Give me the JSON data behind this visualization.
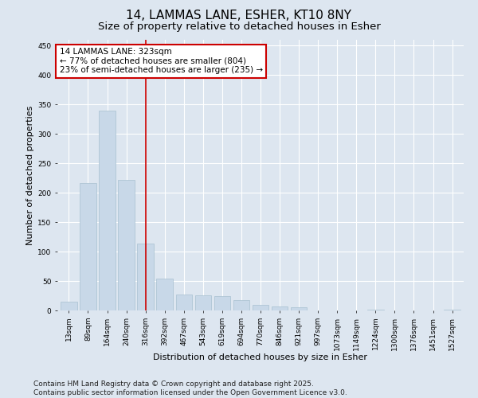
{
  "title_line1": "14, LAMMAS LANE, ESHER, KT10 8NY",
  "title_line2": "Size of property relative to detached houses in Esher",
  "xlabel": "Distribution of detached houses by size in Esher",
  "ylabel": "Number of detached properties",
  "categories": [
    "13sqm",
    "89sqm",
    "164sqm",
    "240sqm",
    "316sqm",
    "392sqm",
    "467sqm",
    "543sqm",
    "619sqm",
    "694sqm",
    "770sqm",
    "846sqm",
    "921sqm",
    "997sqm",
    "1073sqm",
    "1149sqm",
    "1224sqm",
    "1300sqm",
    "1376sqm",
    "1451sqm",
    "1527sqm"
  ],
  "values": [
    15,
    217,
    340,
    222,
    113,
    54,
    27,
    26,
    25,
    18,
    10,
    7,
    5,
    0,
    0,
    0,
    2,
    0,
    0,
    0,
    2
  ],
  "bar_color": "#c8d8e8",
  "bar_edge_color": "#a8c0d0",
  "reference_line_color": "#cc0000",
  "annotation_text": "14 LAMMAS LANE: 323sqm\n← 77% of detached houses are smaller (804)\n23% of semi-detached houses are larger (235) →",
  "annotation_box_color": "#ffffff",
  "annotation_box_edge_color": "#cc0000",
  "ylim": [
    0,
    460
  ],
  "yticks": [
    0,
    50,
    100,
    150,
    200,
    250,
    300,
    350,
    400,
    450
  ],
  "background_color": "#dde6f0",
  "plot_background_color": "#dde6f0",
  "footer_text": "Contains HM Land Registry data © Crown copyright and database right 2025.\nContains public sector information licensed under the Open Government Licence v3.0.",
  "title_fontsize": 11,
  "subtitle_fontsize": 9.5,
  "axis_label_fontsize": 8,
  "tick_fontsize": 6.5,
  "annotation_fontsize": 7.5,
  "footer_fontsize": 6.5
}
